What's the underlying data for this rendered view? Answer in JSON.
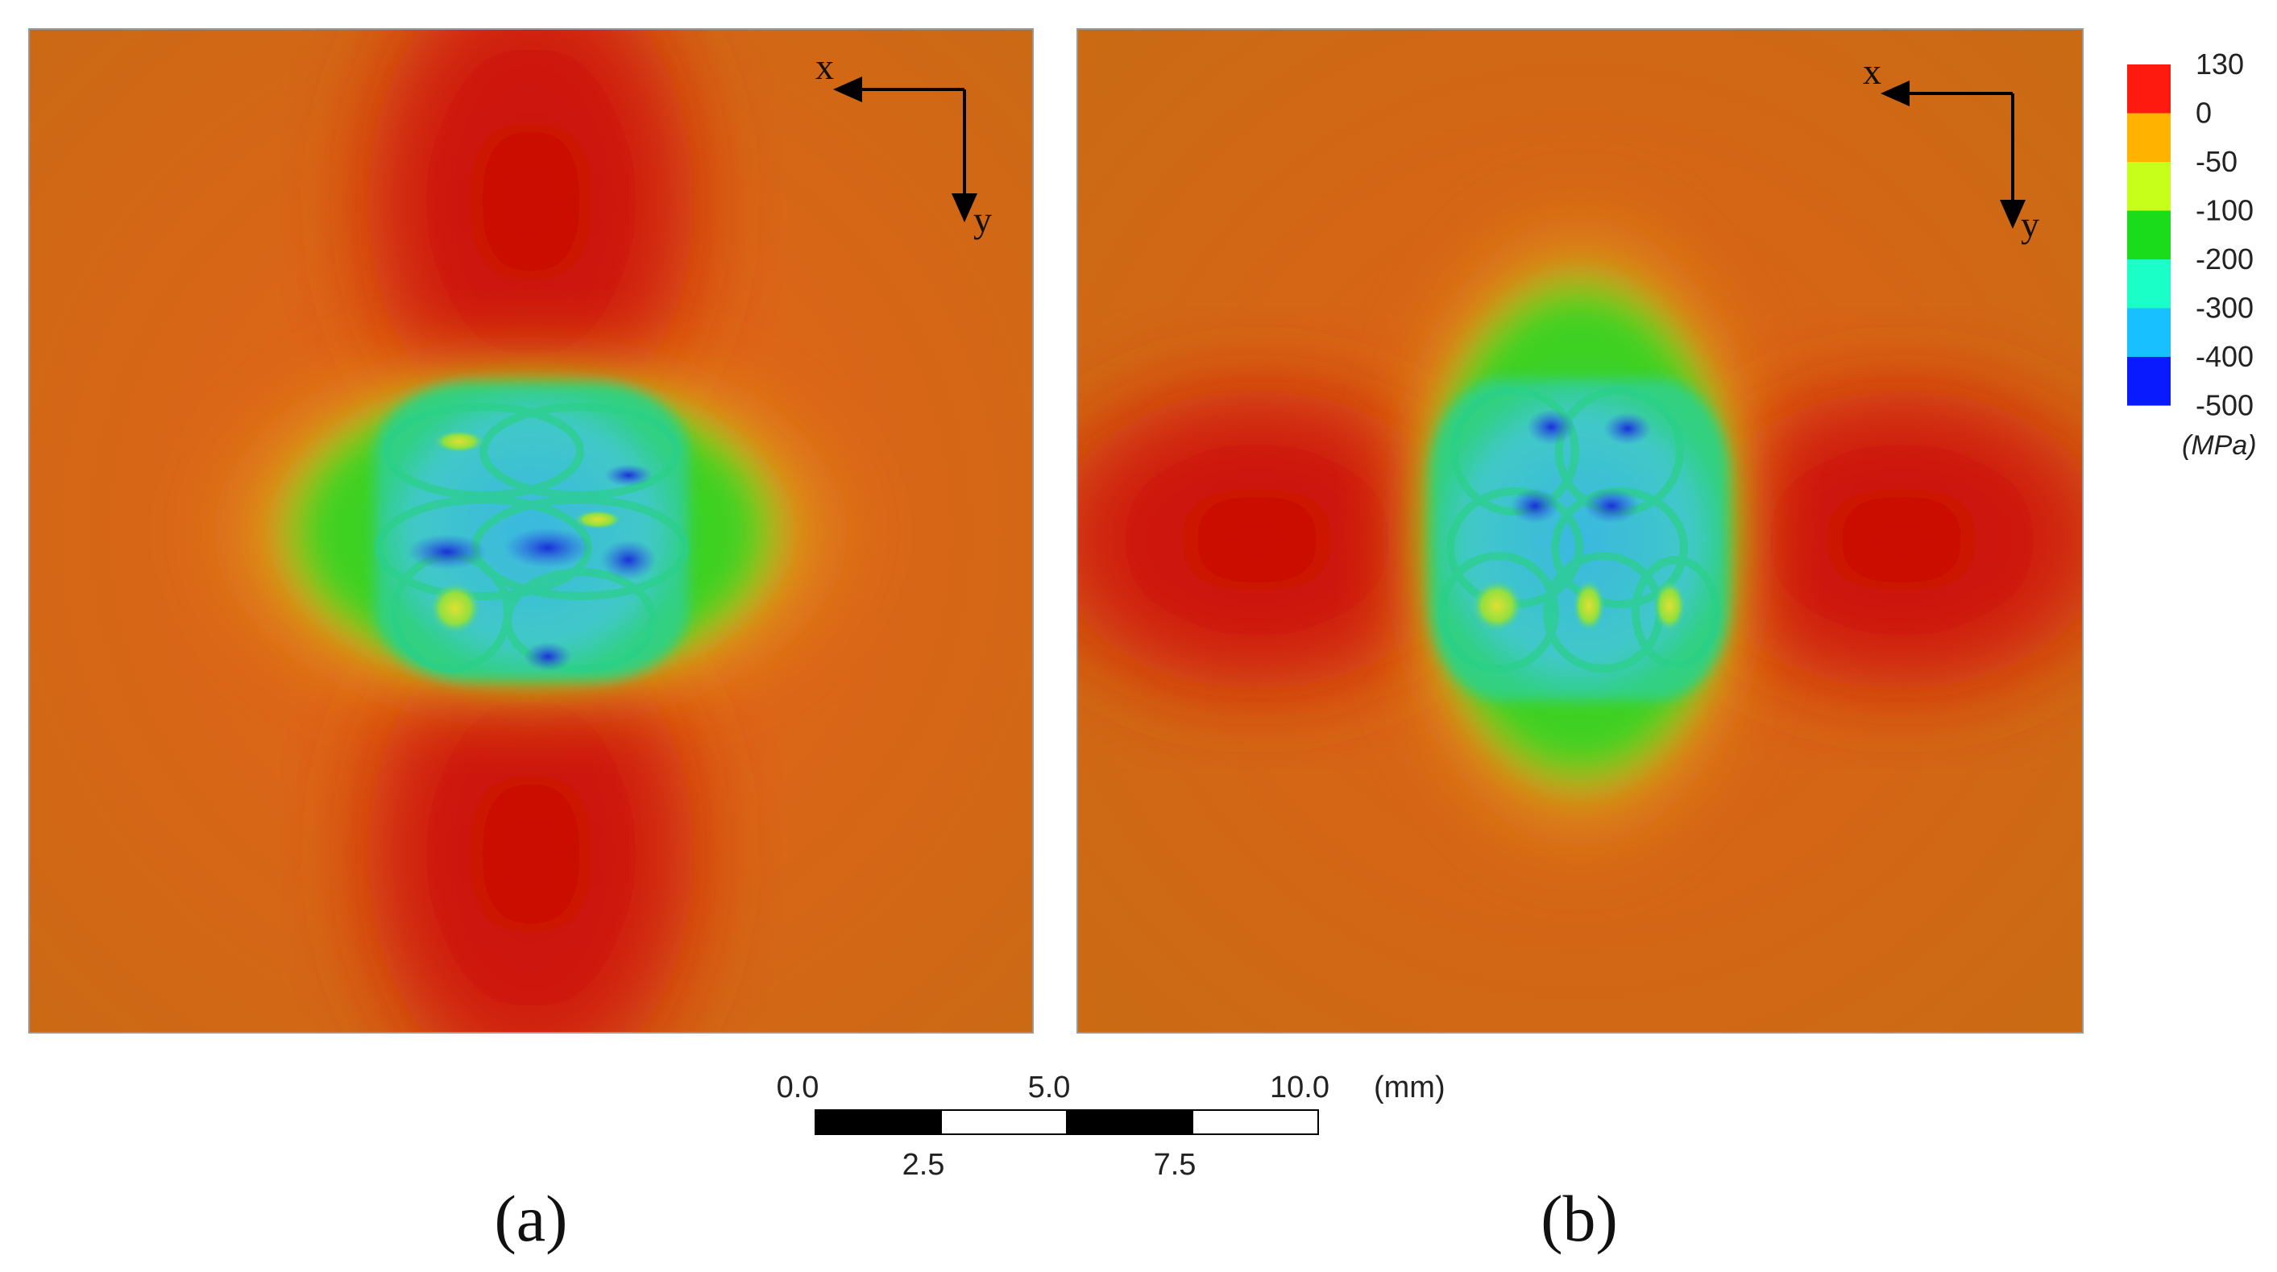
{
  "panels": [
    {
      "id": "a",
      "caption": "(a)",
      "axis_x": "x",
      "axis_y": "y"
    },
    {
      "id": "b",
      "caption": "(b)",
      "axis_x": "x",
      "axis_y": "y"
    }
  ],
  "legend": {
    "unit": "(MPa)",
    "ticks": [
      "130",
      "0",
      "-50",
      "-100",
      "-200",
      "-300",
      "-400",
      "-500"
    ],
    "colors": [
      "#ff1a0f",
      "#ffb300",
      "#c8ff1a",
      "#1adc1a",
      "#1affc8",
      "#19c0ff",
      "#0a1aff"
    ]
  },
  "scale_bar": {
    "unit": "(mm)",
    "top_labels": [
      "0.0",
      "5.0",
      "10.0"
    ],
    "bottom_labels": [
      "2.5",
      "7.5"
    ],
    "segment_colors": [
      "#000000",
      "#ffffff",
      "#000000",
      "#ffffff"
    ]
  }
}
